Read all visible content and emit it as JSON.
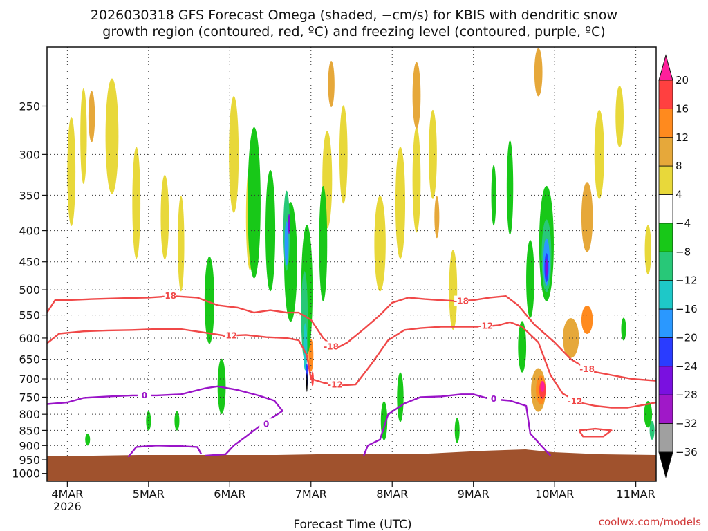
{
  "chart_data": {
    "type": "heatmap",
    "title_lines": [
      "2026030318 GFS Forecast Omega (shaded, −cm/s) for KBIS with dendritic snow",
      "growth region (contoured, red, ºC) and freezing level (contoured, purple, ºC)"
    ],
    "xlabel": "Forecast Time (UTC)",
    "x_ticks": [
      {
        "label": "4MAR",
        "sublabel": "2026",
        "day": 4
      },
      {
        "label": "5MAR",
        "day": 5
      },
      {
        "label": "6MAR",
        "day": 6
      },
      {
        "label": "7MAR",
        "day": 7
      },
      {
        "label": "8MAR",
        "day": 8
      },
      {
        "label": "9MAR",
        "day": 9
      },
      {
        "label": "10MAR",
        "day": 10
      },
      {
        "label": "11MAR",
        "day": 11
      }
    ],
    "xlim_day": [
      3.75,
      11.25
    ],
    "y_ticks": [
      250,
      300,
      350,
      400,
      450,
      500,
      550,
      600,
      650,
      700,
      750,
      800,
      850,
      900,
      950,
      1000
    ],
    "ylim_hpa": [
      200,
      1030
    ],
    "y_scale": "log-pressure",
    "grid": true,
    "colorbar": {
      "labels": [
        "20",
        "16",
        "12",
        "8",
        "4",
        "−4",
        "−8",
        "−12",
        "−16",
        "−20",
        "−24",
        "−28",
        "−32",
        "−36"
      ],
      "colors": [
        "#ff1f9b",
        "#ff4040",
        "#ff8a1e",
        "#e6a83a",
        "#e8d83a",
        "#ffffff",
        "#18c818",
        "#28c878",
        "#1ec8c8",
        "#2a98ff",
        "#2a3cff",
        "#7a10e0",
        "#a018c8",
        "#a0a0a0",
        "#000000"
      ]
    },
    "omega_blobs": [
      {
        "day": 4.05,
        "p": 320,
        "dd": 0.05,
        "dp": 130,
        "color": "#e8d83a"
      },
      {
        "day": 4.2,
        "p": 280,
        "dd": 0.04,
        "dp": 100,
        "color": "#e8d83a"
      },
      {
        "day": 4.55,
        "p": 280,
        "dd": 0.08,
        "dp": 120,
        "color": "#e8d83a"
      },
      {
        "day": 4.85,
        "p": 360,
        "dd": 0.05,
        "dp": 150,
        "color": "#e8d83a"
      },
      {
        "day": 5.2,
        "p": 380,
        "dd": 0.05,
        "dp": 120,
        "color": "#e8d83a"
      },
      {
        "day": 5.4,
        "p": 420,
        "dd": 0.04,
        "dp": 150,
        "color": "#e8d83a"
      },
      {
        "day": 6.05,
        "p": 300,
        "dd": 0.06,
        "dp": 130,
        "color": "#e8d83a"
      },
      {
        "day": 6.25,
        "p": 380,
        "dd": 0.05,
        "dp": 150,
        "color": "#e8d83a"
      },
      {
        "day": 7.2,
        "p": 330,
        "dd": 0.06,
        "dp": 120,
        "color": "#e8d83a"
      },
      {
        "day": 7.4,
        "p": 300,
        "dd": 0.05,
        "dp": 110,
        "color": "#e8d83a"
      },
      {
        "day": 7.85,
        "p": 420,
        "dd": 0.07,
        "dp": 150,
        "color": "#e8d83a"
      },
      {
        "day": 8.1,
        "p": 360,
        "dd": 0.06,
        "dp": 150,
        "color": "#e8d83a"
      },
      {
        "day": 8.3,
        "p": 330,
        "dd": 0.05,
        "dp": 130,
        "color": "#e8d83a"
      },
      {
        "day": 8.5,
        "p": 300,
        "dd": 0.05,
        "dp": 100,
        "color": "#e8d83a"
      },
      {
        "day": 8.75,
        "p": 500,
        "dd": 0.05,
        "dp": 150,
        "color": "#e8d83a"
      },
      {
        "day": 10.55,
        "p": 300,
        "dd": 0.06,
        "dp": 100,
        "color": "#e8d83a"
      },
      {
        "day": 10.8,
        "p": 260,
        "dd": 0.05,
        "dp": 60,
        "color": "#e8d83a"
      },
      {
        "day": 11.15,
        "p": 430,
        "dd": 0.04,
        "dp": 80,
        "color": "#e8d83a"
      },
      {
        "day": 4.3,
        "p": 260,
        "dd": 0.04,
        "dp": 50,
        "color": "#e6a83a"
      },
      {
        "day": 7.25,
        "p": 230,
        "dd": 0.04,
        "dp": 40,
        "color": "#e6a83a"
      },
      {
        "day": 8.3,
        "p": 240,
        "dd": 0.05,
        "dp": 60,
        "color": "#e6a83a"
      },
      {
        "day": 8.55,
        "p": 380,
        "dd": 0.03,
        "dp": 60,
        "color": "#e6a83a"
      },
      {
        "day": 9.8,
        "p": 220,
        "dd": 0.05,
        "dp": 40,
        "color": "#e6a83a"
      },
      {
        "day": 10.2,
        "p": 600,
        "dd": 0.1,
        "dp": 90,
        "color": "#e6a83a"
      },
      {
        "day": 10.4,
        "p": 560,
        "dd": 0.07,
        "dp": 60,
        "color": "#ff8a1e"
      },
      {
        "day": 10.4,
        "p": 380,
        "dd": 0.07,
        "dp": 100,
        "color": "#e6a83a"
      },
      {
        "day": 9.8,
        "p": 730,
        "dd": 0.09,
        "dp": 120,
        "color": "#e6a83a"
      },
      {
        "day": 9.83,
        "p": 730,
        "dd": 0.06,
        "dp": 80,
        "color": "#ff8a1e"
      },
      {
        "day": 9.85,
        "p": 730,
        "dd": 0.04,
        "dp": 50,
        "color": "#ff4040"
      },
      {
        "day": 9.85,
        "p": 720,
        "dd": 0.025,
        "dp": 30,
        "color": "#ff1f9b"
      },
      {
        "day": 7.0,
        "p": 640,
        "dd": 0.03,
        "dp": 80,
        "color": "#ff8a1e"
      },
      {
        "day": 7.02,
        "p": 700,
        "dd": 0.015,
        "dp": 40,
        "color": "#ff4040"
      },
      {
        "day": 5.75,
        "p": 520,
        "dd": 0.06,
        "dp": 170,
        "color": "#18c818"
      },
      {
        "day": 5.9,
        "p": 720,
        "dd": 0.05,
        "dp": 150,
        "color": "#18c818"
      },
      {
        "day": 6.3,
        "p": 360,
        "dd": 0.08,
        "dp": 200,
        "color": "#18c818"
      },
      {
        "day": 6.5,
        "p": 400,
        "dd": 0.06,
        "dp": 180,
        "color": "#18c818"
      },
      {
        "day": 6.75,
        "p": 450,
        "dd": 0.08,
        "dp": 200,
        "color": "#18c818"
      },
      {
        "day": 6.95,
        "p": 500,
        "dd": 0.07,
        "dp": 240,
        "color": "#18c818"
      },
      {
        "day": 7.15,
        "p": 420,
        "dd": 0.05,
        "dp": 180,
        "color": "#18c818"
      },
      {
        "day": 6.7,
        "p": 400,
        "dd": 0.04,
        "dp": 120,
        "color": "#28c878"
      },
      {
        "day": 6.92,
        "p": 550,
        "dd": 0.04,
        "dp": 180,
        "color": "#28c878"
      },
      {
        "day": 6.7,
        "p": 420,
        "dd": 0.025,
        "dp": 70,
        "color": "#2a98ff"
      },
      {
        "day": 6.93,
        "p": 620,
        "dd": 0.025,
        "dp": 110,
        "color": "#1ec8c8"
      },
      {
        "day": 6.95,
        "p": 690,
        "dd": 0.015,
        "dp": 60,
        "color": "#2a3cff"
      },
      {
        "day": 6.95,
        "p": 710,
        "dd": 0.008,
        "dp": 50,
        "color": "#000000"
      },
      {
        "day": 6.73,
        "p": 390,
        "dd": 0.012,
        "dp": 30,
        "color": "#7a10e0"
      },
      {
        "day": 5.0,
        "p": 820,
        "dd": 0.03,
        "dp": 60,
        "color": "#18c818"
      },
      {
        "day": 5.35,
        "p": 820,
        "dd": 0.03,
        "dp": 60,
        "color": "#18c818"
      },
      {
        "day": 4.25,
        "p": 880,
        "dd": 0.03,
        "dp": 40,
        "color": "#18c818"
      },
      {
        "day": 7.9,
        "p": 820,
        "dd": 0.04,
        "dp": 120,
        "color": "#18c818"
      },
      {
        "day": 8.1,
        "p": 750,
        "dd": 0.04,
        "dp": 140,
        "color": "#18c818"
      },
      {
        "day": 8.8,
        "p": 850,
        "dd": 0.03,
        "dp": 80,
        "color": "#18c818"
      },
      {
        "day": 9.25,
        "p": 350,
        "dd": 0.03,
        "dp": 80,
        "color": "#18c818"
      },
      {
        "day": 9.45,
        "p": 340,
        "dd": 0.04,
        "dp": 120,
        "color": "#18c818"
      },
      {
        "day": 9.6,
        "p": 620,
        "dd": 0.05,
        "dp": 120,
        "color": "#18c818"
      },
      {
        "day": 9.7,
        "p": 480,
        "dd": 0.05,
        "dp": 140,
        "color": "#18c818"
      },
      {
        "day": 9.9,
        "p": 420,
        "dd": 0.09,
        "dp": 180,
        "color": "#18c818"
      },
      {
        "day": 9.9,
        "p": 440,
        "dd": 0.06,
        "dp": 120,
        "color": "#28c878"
      },
      {
        "day": 9.9,
        "p": 450,
        "dd": 0.04,
        "dp": 80,
        "color": "#2a98ff"
      },
      {
        "day": 9.9,
        "p": 460,
        "dd": 0.025,
        "dp": 50,
        "color": "#2a3cff"
      },
      {
        "day": 9.9,
        "p": 460,
        "dd": 0.015,
        "dp": 30,
        "color": "#7a10e0"
      },
      {
        "day": 10.85,
        "p": 580,
        "dd": 0.03,
        "dp": 50,
        "color": "#18c818"
      },
      {
        "day": 11.15,
        "p": 800,
        "dd": 0.05,
        "dp": 80,
        "color": "#18c818"
      },
      {
        "day": 11.2,
        "p": 850,
        "dd": 0.03,
        "dp": 60,
        "color": "#28c878"
      }
    ],
    "series": [
      {
        "name": "-18",
        "color": "#f04848",
        "points": [
          [
            3.75,
            545
          ],
          [
            3.85,
            520
          ],
          [
            4.0,
            520
          ],
          [
            4.3,
            518
          ],
          [
            4.7,
            516
          ],
          [
            5.0,
            515
          ],
          [
            5.3,
            512
          ],
          [
            5.6,
            515
          ],
          [
            5.85,
            530
          ],
          [
            6.1,
            535
          ],
          [
            6.3,
            545
          ],
          [
            6.5,
            540
          ],
          [
            6.7,
            545
          ],
          [
            6.85,
            545
          ],
          [
            7.0,
            560
          ],
          [
            7.15,
            600
          ],
          [
            7.3,
            625
          ],
          [
            7.45,
            610
          ],
          [
            7.65,
            580
          ],
          [
            7.85,
            550
          ],
          [
            8.0,
            525
          ],
          [
            8.2,
            515
          ],
          [
            8.4,
            518
          ],
          [
            8.6,
            520
          ],
          [
            8.8,
            522
          ],
          [
            9.0,
            520
          ],
          [
            9.2,
            515
          ],
          [
            9.4,
            512
          ],
          [
            9.55,
            530
          ],
          [
            9.75,
            570
          ],
          [
            10.0,
            610
          ],
          [
            10.2,
            650
          ],
          [
            10.45,
            680
          ],
          [
            10.7,
            690
          ],
          [
            10.95,
            700
          ],
          [
            11.25,
            705
          ]
        ],
        "labels": [
          [
            5.25,
            512
          ],
          [
            7.25,
            620
          ],
          [
            8.85,
            522
          ],
          [
            10.4,
            675
          ]
        ]
      },
      {
        "name": "-12",
        "color": "#f04848",
        "points": [
          [
            3.75,
            612
          ],
          [
            3.9,
            590
          ],
          [
            4.2,
            585
          ],
          [
            4.5,
            583
          ],
          [
            4.8,
            582
          ],
          [
            5.1,
            580
          ],
          [
            5.4,
            580
          ],
          [
            5.7,
            588
          ],
          [
            5.95,
            595
          ],
          [
            6.2,
            593
          ],
          [
            6.45,
            598
          ],
          [
            6.7,
            600
          ],
          [
            6.85,
            605
          ],
          [
            6.95,
            640
          ],
          [
            7.0,
            700
          ],
          [
            7.15,
            710
          ],
          [
            7.35,
            718
          ],
          [
            7.55,
            715
          ],
          [
            7.75,
            660
          ],
          [
            7.95,
            605
          ],
          [
            8.15,
            582
          ],
          [
            8.35,
            578
          ],
          [
            8.6,
            575
          ],
          [
            8.9,
            575
          ],
          [
            9.1,
            575
          ],
          [
            9.3,
            572
          ],
          [
            9.45,
            565
          ],
          [
            9.6,
            575
          ],
          [
            9.8,
            610
          ],
          [
            9.95,
            690
          ],
          [
            10.1,
            740
          ],
          [
            10.3,
            765
          ],
          [
            10.5,
            775
          ],
          [
            10.7,
            780
          ],
          [
            10.9,
            780
          ],
          [
            11.1,
            772
          ],
          [
            11.25,
            765
          ]
        ],
        "labels": [
          [
            6.0,
            595
          ],
          [
            7.3,
            716
          ],
          [
            9.15,
            573
          ],
          [
            10.25,
            762
          ]
        ]
      },
      {
        "name": "-12 (closed)",
        "color": "#f04848",
        "points": [
          [
            10.3,
            850
          ],
          [
            10.5,
            845
          ],
          [
            10.7,
            850
          ],
          [
            10.6,
            870
          ],
          [
            10.35,
            870
          ],
          [
            10.3,
            850
          ]
        ],
        "labels": []
      },
      {
        "name": "0",
        "color": "#9a14c8",
        "points": [
          [
            3.75,
            770
          ],
          [
            4.0,
            765
          ],
          [
            4.2,
            752
          ],
          [
            4.5,
            748
          ],
          [
            4.8,
            745
          ],
          [
            5.1,
            745
          ],
          [
            5.4,
            742
          ],
          [
            5.7,
            725
          ],
          [
            5.85,
            720
          ],
          [
            6.1,
            730
          ],
          [
            6.35,
            745
          ],
          [
            6.55,
            760
          ],
          [
            6.65,
            790
          ],
          [
            6.4,
            830
          ],
          [
            6.2,
            870
          ],
          [
            6.05,
            900
          ],
          [
            5.95,
            930
          ],
          [
            5.7,
            935
          ]
        ],
        "labels": [
          [
            4.95,
            745
          ]
        ]
      },
      {
        "name": "0 (low)",
        "color": "#9a14c8",
        "points": [
          [
            4.75,
            940
          ],
          [
            4.85,
            905
          ],
          [
            5.1,
            900
          ],
          [
            5.4,
            902
          ],
          [
            5.6,
            905
          ],
          [
            5.65,
            930
          ]
        ],
        "labels": []
      },
      {
        "name": "0 (right)",
        "color": "#9a14c8",
        "points": [
          [
            7.65,
            935
          ],
          [
            7.7,
            900
          ],
          [
            7.85,
            880
          ],
          [
            7.95,
            800
          ],
          [
            8.15,
            768
          ],
          [
            8.35,
            750
          ],
          [
            8.6,
            748
          ],
          [
            8.85,
            742
          ],
          [
            9.0,
            742
          ],
          [
            9.2,
            755
          ],
          [
            9.45,
            760
          ],
          [
            9.65,
            775
          ],
          [
            9.7,
            860
          ],
          [
            9.85,
            905
          ],
          [
            9.95,
            935
          ]
        ],
        "labels": [
          [
            9.25,
            755
          ],
          [
            6.45,
            830
          ]
        ]
      }
    ],
    "credit": "coolwx.com/models"
  }
}
